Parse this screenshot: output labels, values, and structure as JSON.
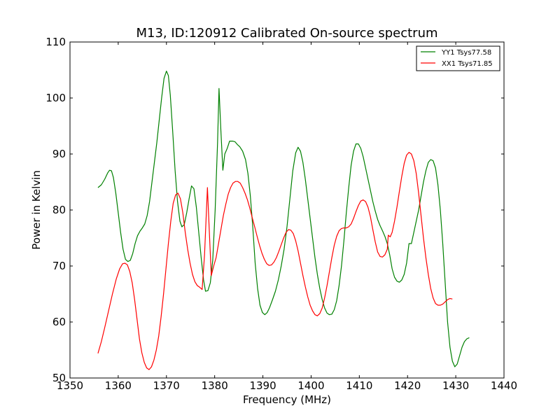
{
  "chart_data": {
    "type": "line",
    "title": "M13, ID:120912 Calibrated On-source spectrum",
    "xlabel": "Frequency (MHz)",
    "ylabel": "Power in Kelvin",
    "xlim": [
      1350,
      1440
    ],
    "ylim": [
      50,
      110
    ],
    "xticks": [
      1350,
      1360,
      1370,
      1380,
      1390,
      1400,
      1410,
      1420,
      1430,
      1440
    ],
    "yticks": [
      50,
      60,
      70,
      80,
      90,
      100,
      110
    ],
    "grid": false,
    "legend_position": "top-right",
    "series": [
      {
        "name": "YY1 Tsys77.58",
        "color": "#008000",
        "points": [
          [
            1355.8,
            84.0
          ],
          [
            1356.5,
            84.5
          ],
          [
            1357.2,
            85.5
          ],
          [
            1357.8,
            86.6
          ],
          [
            1358.2,
            87.1
          ],
          [
            1358.6,
            87.0
          ],
          [
            1359.0,
            85.8
          ],
          [
            1359.5,
            83.0
          ],
          [
            1360.0,
            79.5
          ],
          [
            1360.5,
            76.0
          ],
          [
            1361.0,
            73.0
          ],
          [
            1361.5,
            71.2
          ],
          [
            1362.0,
            70.8
          ],
          [
            1362.5,
            71.0
          ],
          [
            1363.0,
            72.2
          ],
          [
            1363.5,
            74.0
          ],
          [
            1364.0,
            75.4
          ],
          [
            1364.5,
            76.2
          ],
          [
            1365.0,
            76.8
          ],
          [
            1365.5,
            77.5
          ],
          [
            1366.0,
            79.0
          ],
          [
            1366.5,
            81.5
          ],
          [
            1367.0,
            85.0
          ],
          [
            1367.5,
            88.5
          ],
          [
            1368.0,
            92.0
          ],
          [
            1368.5,
            96.0
          ],
          [
            1369.0,
            100.0
          ],
          [
            1369.5,
            103.5
          ],
          [
            1370.0,
            104.8
          ],
          [
            1370.4,
            104.0
          ],
          [
            1370.8,
            100.5
          ],
          [
            1371.3,
            94.0
          ],
          [
            1371.8,
            87.0
          ],
          [
            1372.3,
            81.5
          ],
          [
            1372.8,
            78.0
          ],
          [
            1373.2,
            77.0
          ],
          [
            1373.7,
            77.4
          ],
          [
            1374.2,
            79.5
          ],
          [
            1374.7,
            82.0
          ],
          [
            1375.2,
            84.3
          ],
          [
            1375.7,
            83.8
          ],
          [
            1376.2,
            80.5
          ],
          [
            1376.7,
            76.0
          ],
          [
            1377.2,
            71.5
          ],
          [
            1377.7,
            67.5
          ],
          [
            1378.1,
            65.5
          ],
          [
            1378.6,
            65.6
          ],
          [
            1379.1,
            67.0
          ],
          [
            1379.6,
            71.0
          ],
          [
            1380.1,
            80.0
          ],
          [
            1380.6,
            92.0
          ],
          [
            1380.9,
            101.7
          ],
          [
            1381.3,
            94.0
          ],
          [
            1381.7,
            87.1
          ],
          [
            1382.1,
            90.0
          ],
          [
            1382.6,
            91.0
          ],
          [
            1383.1,
            92.3
          ],
          [
            1383.7,
            92.3
          ],
          [
            1384.2,
            92.2
          ],
          [
            1384.7,
            91.7
          ],
          [
            1385.2,
            91.3
          ],
          [
            1385.8,
            90.5
          ],
          [
            1386.4,
            89.0
          ],
          [
            1386.9,
            86.5
          ],
          [
            1387.4,
            82.5
          ],
          [
            1387.9,
            77.0
          ],
          [
            1388.4,
            70.5
          ],
          [
            1388.9,
            66.0
          ],
          [
            1389.4,
            63.0
          ],
          [
            1389.9,
            61.7
          ],
          [
            1390.4,
            61.3
          ],
          [
            1390.9,
            61.7
          ],
          [
            1391.4,
            62.6
          ],
          [
            1392.0,
            64.0
          ],
          [
            1392.6,
            65.5
          ],
          [
            1393.2,
            67.5
          ],
          [
            1393.8,
            70.0
          ],
          [
            1394.4,
            73.0
          ],
          [
            1395.0,
            77.0
          ],
          [
            1395.6,
            82.0
          ],
          [
            1396.2,
            87.0
          ],
          [
            1396.8,
            90.2
          ],
          [
            1397.3,
            91.2
          ],
          [
            1397.8,
            90.5
          ],
          [
            1398.3,
            88.5
          ],
          [
            1398.8,
            85.5
          ],
          [
            1399.3,
            82.0
          ],
          [
            1399.8,
            78.5
          ],
          [
            1400.3,
            75.0
          ],
          [
            1400.8,
            71.5
          ],
          [
            1401.3,
            68.5
          ],
          [
            1401.8,
            66.0
          ],
          [
            1402.3,
            64.0
          ],
          [
            1402.8,
            62.5
          ],
          [
            1403.3,
            61.6
          ],
          [
            1403.8,
            61.3
          ],
          [
            1404.3,
            61.4
          ],
          [
            1404.8,
            62.2
          ],
          [
            1405.3,
            63.8
          ],
          [
            1405.8,
            66.5
          ],
          [
            1406.3,
            70.0
          ],
          [
            1406.8,
            74.5
          ],
          [
            1407.3,
            79.5
          ],
          [
            1407.8,
            84.0
          ],
          [
            1408.3,
            88.0
          ],
          [
            1408.8,
            90.5
          ],
          [
            1409.3,
            91.8
          ],
          [
            1409.8,
            91.8
          ],
          [
            1410.3,
            91.0
          ],
          [
            1410.8,
            89.5
          ],
          [
            1411.3,
            87.5
          ],
          [
            1411.8,
            85.5
          ],
          [
            1412.3,
            83.5
          ],
          [
            1412.8,
            81.5
          ],
          [
            1413.3,
            79.8
          ],
          [
            1413.8,
            78.3
          ],
          [
            1414.3,
            77.2
          ],
          [
            1414.8,
            76.3
          ],
          [
            1415.3,
            75.3
          ],
          [
            1415.8,
            74.0
          ],
          [
            1416.3,
            72.0
          ],
          [
            1416.8,
            69.5
          ],
          [
            1417.3,
            68.0
          ],
          [
            1417.8,
            67.3
          ],
          [
            1418.3,
            67.1
          ],
          [
            1418.8,
            67.5
          ],
          [
            1419.3,
            68.5
          ],
          [
            1419.8,
            70.5
          ],
          [
            1420.3,
            74.0
          ],
          [
            1420.8,
            74.0
          ],
          [
            1421.3,
            76.0
          ],
          [
            1421.8,
            78.0
          ],
          [
            1422.3,
            80.0
          ],
          [
            1422.8,
            82.5
          ],
          [
            1423.3,
            85.0
          ],
          [
            1423.8,
            87.0
          ],
          [
            1424.3,
            88.5
          ],
          [
            1424.8,
            89.0
          ],
          [
            1425.3,
            88.8
          ],
          [
            1425.8,
            87.5
          ],
          [
            1426.3,
            84.5
          ],
          [
            1426.8,
            80.0
          ],
          [
            1427.3,
            74.0
          ],
          [
            1427.8,
            67.0
          ],
          [
            1428.3,
            60.0
          ],
          [
            1428.8,
            55.5
          ],
          [
            1429.3,
            53.0
          ],
          [
            1429.8,
            52.0
          ],
          [
            1430.3,
            52.5
          ],
          [
            1430.8,
            54.0
          ],
          [
            1431.3,
            55.5
          ],
          [
            1431.8,
            56.5
          ],
          [
            1432.3,
            57.0
          ],
          [
            1432.8,
            57.2
          ]
        ]
      },
      {
        "name": "XX1 Tsys71.85",
        "color": "#ff0000",
        "points": [
          [
            1355.8,
            54.4
          ],
          [
            1356.5,
            56.5
          ],
          [
            1357.2,
            59.0
          ],
          [
            1358.0,
            62.0
          ],
          [
            1358.8,
            65.0
          ],
          [
            1359.6,
            67.7
          ],
          [
            1360.3,
            69.5
          ],
          [
            1360.9,
            70.4
          ],
          [
            1361.4,
            70.5
          ],
          [
            1361.9,
            70.2
          ],
          [
            1362.4,
            69.0
          ],
          [
            1362.9,
            67.0
          ],
          [
            1363.4,
            64.0
          ],
          [
            1363.9,
            60.5
          ],
          [
            1364.4,
            57.0
          ],
          [
            1364.9,
            54.5
          ],
          [
            1365.4,
            52.8
          ],
          [
            1365.9,
            51.8
          ],
          [
            1366.4,
            51.5
          ],
          [
            1366.9,
            52.0
          ],
          [
            1367.4,
            53.2
          ],
          [
            1367.9,
            55.0
          ],
          [
            1368.4,
            57.5
          ],
          [
            1368.9,
            61.0
          ],
          [
            1369.4,
            65.0
          ],
          [
            1369.9,
            69.5
          ],
          [
            1370.4,
            74.0
          ],
          [
            1370.9,
            78.0
          ],
          [
            1371.4,
            81.2
          ],
          [
            1371.9,
            82.7
          ],
          [
            1372.4,
            83.0
          ],
          [
            1372.9,
            82.0
          ],
          [
            1373.4,
            79.5
          ],
          [
            1373.9,
            76.0
          ],
          [
            1374.4,
            73.0
          ],
          [
            1374.9,
            70.5
          ],
          [
            1375.4,
            68.5
          ],
          [
            1375.9,
            67.2
          ],
          [
            1376.4,
            66.5
          ],
          [
            1376.9,
            66.2
          ],
          [
            1377.4,
            65.8
          ],
          [
            1377.9,
            72.0
          ],
          [
            1378.2,
            78.0
          ],
          [
            1378.5,
            84.0
          ],
          [
            1378.9,
            76.0
          ],
          [
            1379.3,
            68.3
          ],
          [
            1379.8,
            70.0
          ],
          [
            1380.3,
            71.5
          ],
          [
            1380.8,
            74.0
          ],
          [
            1381.3,
            76.5
          ],
          [
            1381.8,
            79.0
          ],
          [
            1382.3,
            81.0
          ],
          [
            1382.8,
            82.8
          ],
          [
            1383.3,
            84.0
          ],
          [
            1383.8,
            84.8
          ],
          [
            1384.3,
            85.1
          ],
          [
            1384.8,
            85.1
          ],
          [
            1385.3,
            84.8
          ],
          [
            1385.8,
            84.0
          ],
          [
            1386.3,
            83.0
          ],
          [
            1386.8,
            81.8
          ],
          [
            1387.3,
            80.3
          ],
          [
            1387.8,
            78.6
          ],
          [
            1388.3,
            77.0
          ],
          [
            1388.8,
            75.3
          ],
          [
            1389.3,
            73.7
          ],
          [
            1389.8,
            72.3
          ],
          [
            1390.3,
            71.2
          ],
          [
            1390.8,
            70.4
          ],
          [
            1391.3,
            70.1
          ],
          [
            1391.8,
            70.2
          ],
          [
            1392.3,
            70.7
          ],
          [
            1392.8,
            71.5
          ],
          [
            1393.3,
            72.6
          ],
          [
            1393.8,
            73.8
          ],
          [
            1394.3,
            75.0
          ],
          [
            1394.8,
            76.0
          ],
          [
            1395.3,
            76.5
          ],
          [
            1395.8,
            76.4
          ],
          [
            1396.3,
            75.8
          ],
          [
            1396.8,
            74.5
          ],
          [
            1397.3,
            72.7
          ],
          [
            1397.8,
            70.5
          ],
          [
            1398.3,
            68.3
          ],
          [
            1398.8,
            66.3
          ],
          [
            1399.3,
            64.5
          ],
          [
            1399.8,
            63.0
          ],
          [
            1400.3,
            62.0
          ],
          [
            1400.8,
            61.3
          ],
          [
            1401.3,
            61.1
          ],
          [
            1401.8,
            61.5
          ],
          [
            1402.3,
            62.5
          ],
          [
            1402.8,
            64.3
          ],
          [
            1403.3,
            66.5
          ],
          [
            1403.8,
            69.0
          ],
          [
            1404.3,
            71.5
          ],
          [
            1404.8,
            73.7
          ],
          [
            1405.3,
            75.3
          ],
          [
            1405.8,
            76.3
          ],
          [
            1406.3,
            76.7
          ],
          [
            1406.8,
            76.8
          ],
          [
            1407.3,
            76.8
          ],
          [
            1407.8,
            77.0
          ],
          [
            1408.3,
            77.5
          ],
          [
            1408.8,
            78.5
          ],
          [
            1409.3,
            79.7
          ],
          [
            1409.8,
            80.8
          ],
          [
            1410.3,
            81.6
          ],
          [
            1410.8,
            81.8
          ],
          [
            1411.3,
            81.5
          ],
          [
            1411.8,
            80.5
          ],
          [
            1412.3,
            78.8
          ],
          [
            1412.8,
            76.5
          ],
          [
            1413.3,
            74.3
          ],
          [
            1413.8,
            72.5
          ],
          [
            1414.3,
            71.7
          ],
          [
            1414.8,
            71.6
          ],
          [
            1415.3,
            72.0
          ],
          [
            1415.8,
            73.0
          ],
          [
            1416.0,
            75.5
          ],
          [
            1416.4,
            75.2
          ],
          [
            1416.8,
            76.0
          ],
          [
            1417.3,
            78.0
          ],
          [
            1417.8,
            80.5
          ],
          [
            1418.3,
            83.3
          ],
          [
            1418.8,
            86.0
          ],
          [
            1419.3,
            88.3
          ],
          [
            1419.8,
            89.8
          ],
          [
            1420.3,
            90.3
          ],
          [
            1420.8,
            90.0
          ],
          [
            1421.3,
            88.8
          ],
          [
            1421.8,
            86.5
          ],
          [
            1422.3,
            83.0
          ],
          [
            1422.8,
            79.0
          ],
          [
            1423.3,
            75.0
          ],
          [
            1423.8,
            71.5
          ],
          [
            1424.3,
            68.5
          ],
          [
            1424.8,
            66.0
          ],
          [
            1425.3,
            64.3
          ],
          [
            1425.8,
            63.3
          ],
          [
            1426.3,
            63.0
          ],
          [
            1426.8,
            63.0
          ],
          [
            1427.3,
            63.2
          ],
          [
            1427.8,
            63.6
          ],
          [
            1428.3,
            64.0
          ],
          [
            1428.8,
            64.2
          ],
          [
            1429.3,
            64.1
          ]
        ]
      }
    ]
  }
}
